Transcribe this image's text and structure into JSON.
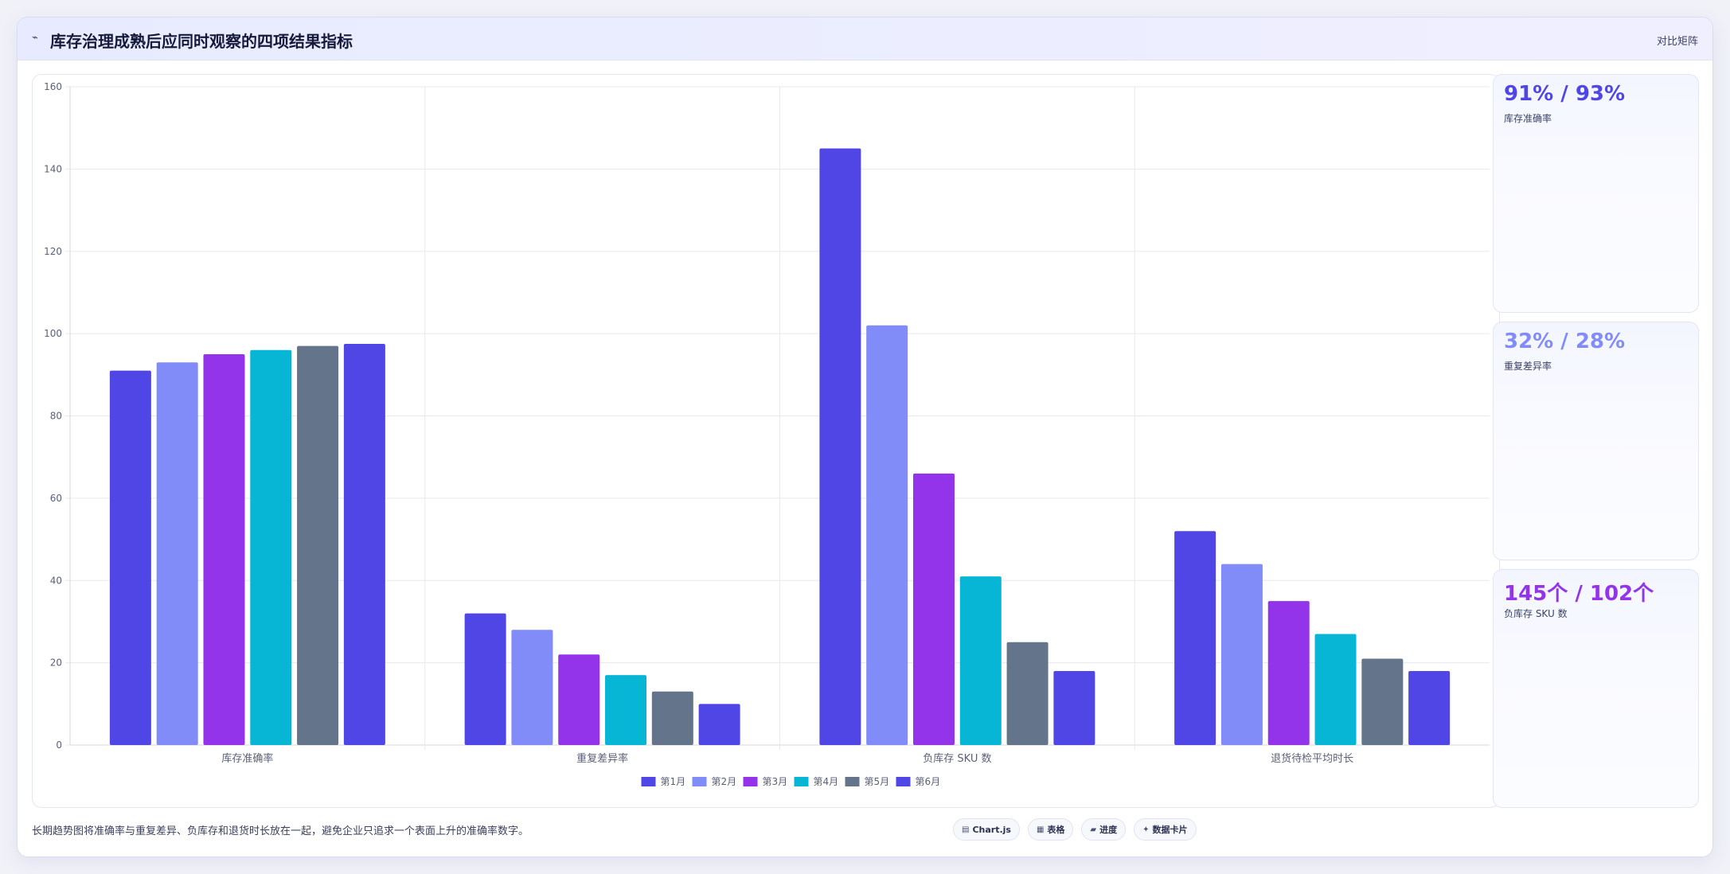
{
  "header": {
    "icon": "trend-line-icon",
    "title": "库存治理成熟后应同时观察的四项结果指标",
    "link_label": "对比矩阵"
  },
  "stats": [
    {
      "value": "91% / 93%",
      "label": "库存准确率",
      "color": "#4f46e5"
    },
    {
      "value": "32% / 28%",
      "label": "重复差异率",
      "color": "#818cf8"
    },
    {
      "value": "145个 / 102个",
      "label": "负库存 SKU 数",
      "color": "#9333ea"
    }
  ],
  "footer": {
    "note": "长期趋势图将准确率与重复差异、负库存和退货时长放在一起，避免企业只追求一个表面上升的准确率数字。",
    "chips": [
      {
        "icon": "chart-icon",
        "glyph": "▤",
        "label": "Chart.js"
      },
      {
        "icon": "table-icon",
        "glyph": "▦",
        "label": "表格"
      },
      {
        "icon": "progress-icon",
        "glyph": "▰",
        "label": "进度"
      },
      {
        "icon": "sparkle-icon",
        "glyph": "✦",
        "label": "数据卡片"
      }
    ]
  },
  "chart_data": {
    "type": "bar",
    "categories": [
      "库存准确率",
      "重复差异率",
      "负库存 SKU 数",
      "退货待检平均时长"
    ],
    "series": [
      {
        "name": "第1月",
        "color": "#4f46e5",
        "values": [
          91,
          32,
          145,
          52
        ]
      },
      {
        "name": "第2月",
        "color": "#818cf8",
        "values": [
          93,
          28,
          102,
          44
        ]
      },
      {
        "name": "第3月",
        "color": "#9333ea",
        "values": [
          95,
          22,
          66,
          35
        ]
      },
      {
        "name": "第4月",
        "color": "#06b6d4",
        "values": [
          96,
          17,
          41,
          27
        ]
      },
      {
        "name": "第5月",
        "color": "#64748b",
        "values": [
          97,
          13,
          25,
          21
        ]
      },
      {
        "name": "第6月",
        "color": "#4f46e5",
        "values": [
          97.5,
          10,
          18,
          18
        ]
      }
    ],
    "ylim": [
      0,
      160
    ],
    "yticks": [
      0,
      20,
      40,
      60,
      80,
      100,
      120,
      140,
      160
    ],
    "grid": true,
    "legend": "bottom"
  }
}
